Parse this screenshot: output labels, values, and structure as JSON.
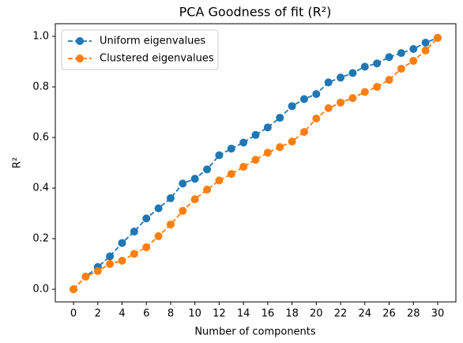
{
  "chart_data": {
    "type": "line",
    "title": "PCA Goodness of fit (R²)",
    "xlabel": "Number of components",
    "ylabel": "R²",
    "x": [
      0,
      1,
      2,
      3,
      4,
      5,
      6,
      7,
      8,
      9,
      10,
      11,
      12,
      13,
      14,
      15,
      16,
      17,
      18,
      19,
      20,
      21,
      22,
      23,
      24,
      25,
      26,
      27,
      28,
      29,
      30
    ],
    "series": [
      {
        "name": "Uniform eigenvalues",
        "color": "#1f77b4",
        "values": [
          0,
          0.05,
          0.088,
          0.13,
          0.183,
          0.228,
          0.28,
          0.32,
          0.36,
          0.418,
          0.437,
          0.474,
          0.53,
          0.556,
          0.58,
          0.61,
          0.64,
          0.678,
          0.724,
          0.752,
          0.772,
          0.818,
          0.837,
          0.855,
          0.88,
          0.893,
          0.918,
          0.934,
          0.95,
          0.975,
          0.994
        ]
      },
      {
        "name": "Clustered eigenvalues",
        "color": "#ff7f0e",
        "values": [
          0,
          0.05,
          0.072,
          0.1,
          0.113,
          0.14,
          0.166,
          0.21,
          0.256,
          0.31,
          0.356,
          0.394,
          0.43,
          0.456,
          0.484,
          0.512,
          0.54,
          0.562,
          0.584,
          0.622,
          0.675,
          0.716,
          0.738,
          0.756,
          0.78,
          0.8,
          0.828,
          0.872,
          0.903,
          0.944,
          0.994
        ]
      }
    ],
    "xlim": [
      -1.5,
      31.5
    ],
    "ylim": [
      -0.05,
      1.05
    ],
    "xticks": [
      0,
      2,
      4,
      6,
      8,
      10,
      12,
      14,
      16,
      18,
      20,
      22,
      24,
      26,
      28,
      30
    ],
    "yticks": [
      {
        "value": 0,
        "label": "0.0"
      },
      0.2,
      0.4,
      0.6,
      0.8,
      {
        "value": 1,
        "label": "1.0"
      }
    ],
    "legend": "upper left",
    "linestyle": "dashed"
  }
}
